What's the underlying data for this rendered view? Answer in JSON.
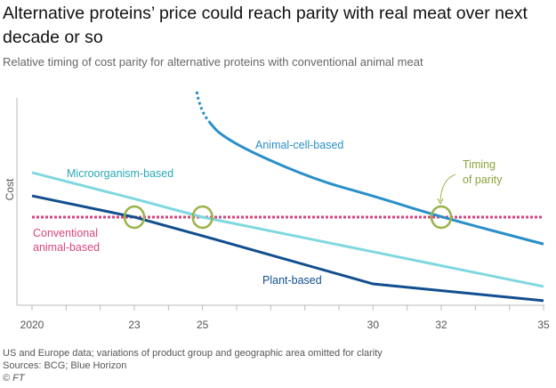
{
  "header": {
    "title": "Alternative proteins’ price could reach parity with real meat over next decade or so",
    "subtitle": "Relative timing of cost parity for alternative proteins with conventional animal meat"
  },
  "footer": {
    "note": "US and Europe data; variations of product group and geographic area omitted for clarity",
    "sources": "Sources: BCG; Blue Horizon",
    "copyright": "© FT"
  },
  "chart_data": {
    "type": "line",
    "title": "",
    "xlabel": "",
    "ylabel": "Cost",
    "xlim": [
      2020,
      2035
    ],
    "ylim": [
      0,
      100
    ],
    "y_ticks_shown": false,
    "grid": false,
    "x_ticks": [
      2020,
      2021,
      2022,
      2023,
      2024,
      2025,
      2026,
      2027,
      2028,
      2029,
      2030,
      2031,
      2032,
      2033,
      2034,
      2035
    ],
    "x_tick_labels": [
      {
        "year": 2020,
        "label": "2020"
      },
      {
        "year": 2023,
        "label": "23"
      },
      {
        "year": 2025,
        "label": "25"
      },
      {
        "year": 2030,
        "label": "30"
      },
      {
        "year": 2032,
        "label": "32"
      },
      {
        "year": 2035,
        "label": "35"
      }
    ],
    "series": [
      {
        "name": "Conventional animal-based",
        "color": "#d6457d",
        "style": "dotted",
        "x": [
          2020,
          2035
        ],
        "y": [
          40.5,
          40.5
        ]
      },
      {
        "name": "Plant-based",
        "color": "#114e8e",
        "style": "solid",
        "x": [
          2020,
          2023,
          2025,
          2030,
          2035
        ],
        "y": [
          50.4,
          40.5,
          31.8,
          9.5,
          1.7
        ]
      },
      {
        "name": "Microorganism-based",
        "color": "#7fd8df",
        "style": "solid",
        "x": [
          2020,
          2023,
          2025,
          2030,
          2035
        ],
        "y": [
          61.2,
          49,
          40.5,
          24.4,
          8.3
        ]
      },
      {
        "name": "Animal-cell-based",
        "color": "#2a8fc8",
        "style": "solid",
        "x": [
          2025.2,
          2025.5,
          2026.5,
          2028.4,
          2030,
          2032,
          2035
        ],
        "y": [
          84.7,
          79,
          70,
          57.4,
          50.4,
          40.5,
          28
        ],
        "dashed_start": {
          "x": [
            2024.83,
            2025.2
          ],
          "y": [
            98.8,
            84.7
          ]
        }
      }
    ],
    "annotations": {
      "parity_label": [
        "Timing",
        "of parity"
      ],
      "parity_color": "#9ab34a",
      "parity_points": [
        2023,
        2025,
        2032
      ],
      "parity_level": 40.5
    }
  }
}
